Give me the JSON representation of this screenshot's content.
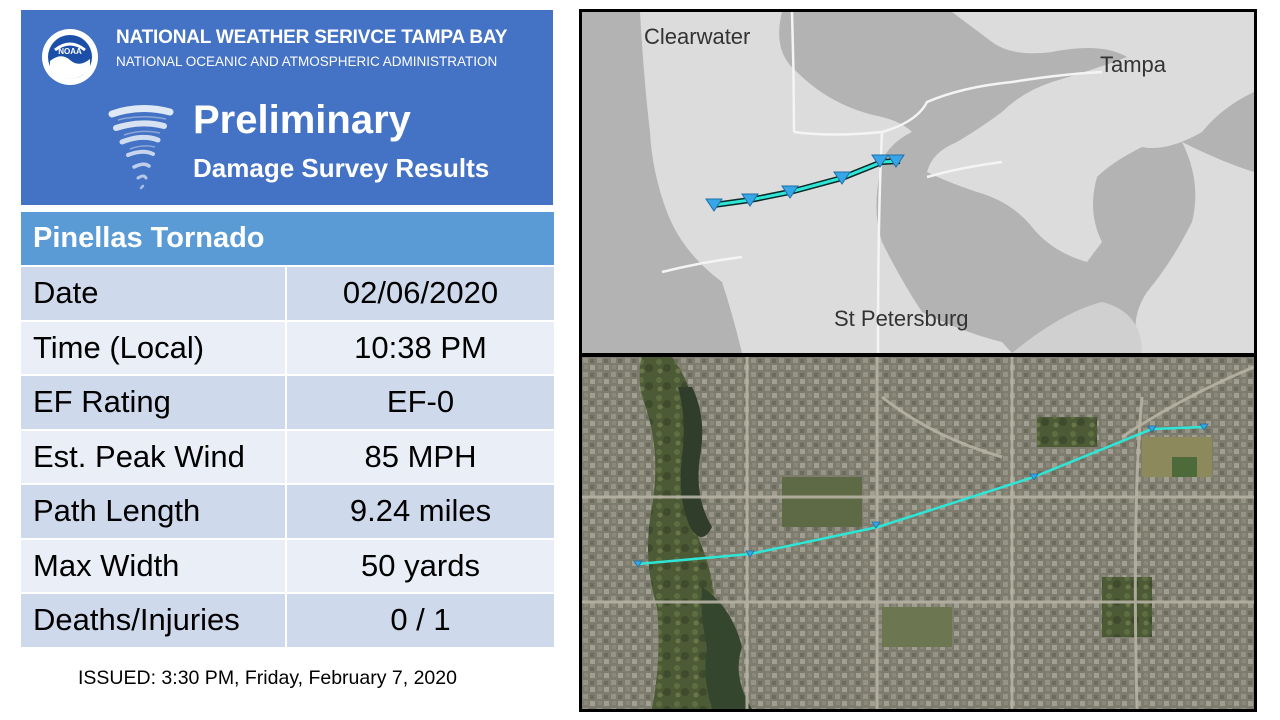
{
  "header": {
    "agency": "NATIONAL WEATHER SERIVCE TAMPA BAY",
    "agency_sub": "NATIONAL OCEANIC AND ATMOSPHERIC ADMINISTRATION",
    "logo_text": "NOAA",
    "title": "Preliminary",
    "subtitle": "Damage Survey Results"
  },
  "table": {
    "title": "Pinellas Tornado",
    "rows": [
      {
        "label": "Date",
        "value": "02/06/2020"
      },
      {
        "label": "Time (Local)",
        "value": "10:38 PM"
      },
      {
        "label": "EF Rating",
        "value": "EF-0"
      },
      {
        "label": "Est. Peak Wind",
        "value": "85 MPH"
      },
      {
        "label": "Path Length",
        "value": "9.24 miles"
      },
      {
        "label": "Max Width",
        "value": "50 yards"
      },
      {
        "label": "Deaths/Injuries",
        "value": "0 / 1"
      }
    ]
  },
  "issued": "ISSUED:  3:30 PM, Friday, February 7, 2020",
  "map": {
    "labels": {
      "clearwater": "Clearwater",
      "tampa": "Tampa",
      "st_petersburg": "St Petersburg"
    }
  },
  "colors": {
    "header_bg": "#4472c4",
    "table_title_bg": "#5b9bd5",
    "row_dark": "#cfd9ec",
    "row_light": "#e9eef7",
    "track": "#2ee6d6"
  }
}
